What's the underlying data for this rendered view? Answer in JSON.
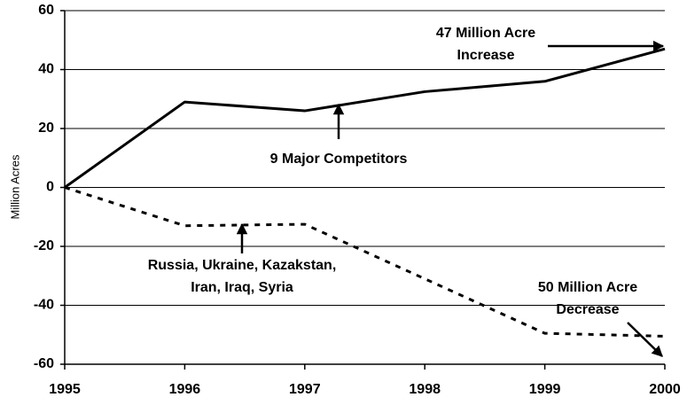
{
  "chart_data": {
    "type": "line",
    "y_label": "Million Acres",
    "x": [
      1995,
      1996,
      1997,
      1998,
      1999,
      2000
    ],
    "xlim": [
      1995,
      2000
    ],
    "xticks": [
      1995,
      1996,
      1997,
      1998,
      1999,
      2000
    ],
    "ylim": [
      -60,
      60
    ],
    "yticks": [
      -60,
      -40,
      -20,
      0,
      20,
      40,
      60
    ],
    "grid": true,
    "series": [
      {
        "color": "#000000",
        "dash": "solid",
        "values": [
          0,
          29,
          26,
          32.5,
          36,
          47
        ]
      },
      {
        "color": "#000000",
        "dash": "dashed",
        "values": [
          0,
          -13,
          -12.5,
          -31,
          -49.5,
          -50.5
        ]
      }
    ],
    "annotations": [
      {
        "lines": [
          "47 Million Acre",
          "Increase"
        ]
      },
      {
        "lines": [
          "9 Major Competitors"
        ]
      },
      {
        "lines": [
          "Russia, Ukraine, Kazakstan,",
          "Iran, Iraq, Syria"
        ]
      },
      {
        "lines": [
          "50 Million Acre",
          "Decrease"
        ]
      }
    ]
  }
}
